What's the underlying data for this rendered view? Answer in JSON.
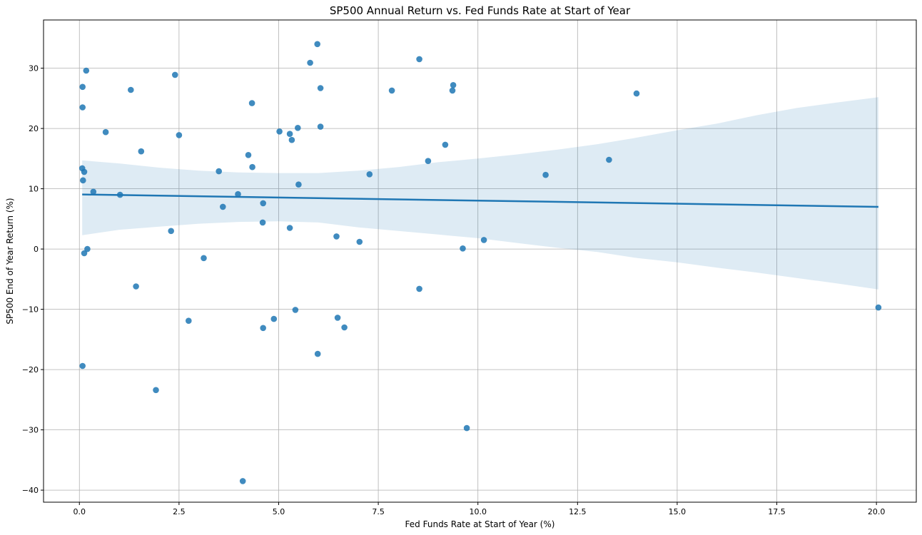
{
  "chart_data": {
    "type": "scatter",
    "title": "SP500 Annual Return vs. Fed Funds Rate at Start of Year",
    "xlabel": "Fed Funds Rate at Start of Year (%)",
    "ylabel": "SP500 End of Year Return (%)",
    "xlim": [
      -0.9,
      21.0
    ],
    "ylim": [
      -42,
      38
    ],
    "xticks": [
      0.0,
      2.5,
      5.0,
      7.5,
      10.0,
      12.5,
      15.0,
      17.5,
      20.0
    ],
    "xtick_labels": [
      "0.0",
      "2.5",
      "5.0",
      "7.5",
      "10.0",
      "12.5",
      "15.0",
      "17.5",
      "20.0"
    ],
    "yticks": [
      -40,
      -30,
      -20,
      -10,
      0,
      10,
      20,
      30
    ],
    "ytick_labels": [
      "−40",
      "−30",
      "−20",
      "−10",
      "0",
      "10",
      "20",
      "30"
    ],
    "grid": true,
    "color": "#1f77b4",
    "points": [
      [
        0.17,
        29.6
      ],
      [
        0.08,
        26.9
      ],
      [
        0.08,
        23.5
      ],
      [
        0.07,
        13.4
      ],
      [
        0.12,
        12.8
      ],
      [
        0.09,
        11.4
      ],
      [
        0.35,
        9.5
      ],
      [
        0.12,
        -0.7
      ],
      [
        0.2,
        0.0
      ],
      [
        0.08,
        -19.4
      ],
      [
        0.66,
        19.4
      ],
      [
        1.02,
        9.0
      ],
      [
        1.29,
        26.4
      ],
      [
        1.42,
        -6.2
      ],
      [
        1.55,
        16.2
      ],
      [
        1.92,
        -23.4
      ],
      [
        2.3,
        3.0
      ],
      [
        2.4,
        28.9
      ],
      [
        2.5,
        18.9
      ],
      [
        2.74,
        -11.9
      ],
      [
        3.12,
        -1.5
      ],
      [
        3.5,
        12.9
      ],
      [
        3.6,
        7.0
      ],
      [
        3.98,
        9.1
      ],
      [
        4.1,
        -38.5
      ],
      [
        4.24,
        15.6
      ],
      [
        4.33,
        24.2
      ],
      [
        4.34,
        13.6
      ],
      [
        4.6,
        4.4
      ],
      [
        4.61,
        7.6
      ],
      [
        4.61,
        -13.1
      ],
      [
        4.88,
        -11.6
      ],
      [
        5.02,
        19.5
      ],
      [
        5.28,
        19.1
      ],
      [
        5.28,
        3.5
      ],
      [
        5.33,
        18.1
      ],
      [
        5.42,
        -10.1
      ],
      [
        5.48,
        20.1
      ],
      [
        5.5,
        10.7
      ],
      [
        5.79,
        30.9
      ],
      [
        5.97,
        34.0
      ],
      [
        5.98,
        -17.4
      ],
      [
        6.05,
        26.7
      ],
      [
        6.05,
        20.3
      ],
      [
        6.45,
        2.1
      ],
      [
        6.48,
        -11.4
      ],
      [
        6.65,
        -13.0
      ],
      [
        7.03,
        1.2
      ],
      [
        7.28,
        12.4
      ],
      [
        7.84,
        26.3
      ],
      [
        8.53,
        31.5
      ],
      [
        8.53,
        -6.6
      ],
      [
        8.75,
        14.6
      ],
      [
        9.18,
        17.3
      ],
      [
        9.36,
        26.3
      ],
      [
        9.38,
        27.2
      ],
      [
        9.62,
        0.1
      ],
      [
        9.72,
        -29.7
      ],
      [
        10.15,
        1.5
      ],
      [
        11.7,
        12.3
      ],
      [
        13.29,
        14.8
      ],
      [
        13.98,
        25.8
      ],
      [
        20.05,
        -9.7
      ]
    ],
    "regression": {
      "x": [
        0.07,
        20.05
      ],
      "y": [
        9.05,
        7.0
      ]
    },
    "confidence_band": {
      "x": [
        0.07,
        1.0,
        2.0,
        3.0,
        4.0,
        5.0,
        6.0,
        7.0,
        8.0,
        9.0,
        10.0,
        11.0,
        12.0,
        13.0,
        14.0,
        15.0,
        16.0,
        17.0,
        18.0,
        19.0,
        20.05
      ],
      "upper": [
        14.7,
        14.2,
        13.5,
        13.0,
        12.7,
        12.6,
        12.6,
        13.0,
        13.6,
        14.4,
        15.0,
        15.7,
        16.5,
        17.4,
        18.5,
        19.7,
        20.8,
        22.2,
        23.4,
        24.3,
        25.2
      ],
      "lower": [
        2.3,
        3.2,
        3.7,
        4.2,
        4.5,
        4.6,
        4.4,
        3.6,
        3.0,
        2.4,
        1.8,
        1.0,
        0.2,
        -0.5,
        -1.5,
        -2.2,
        -3.1,
        -3.9,
        -4.8,
        -5.7,
        -6.7
      ]
    }
  }
}
